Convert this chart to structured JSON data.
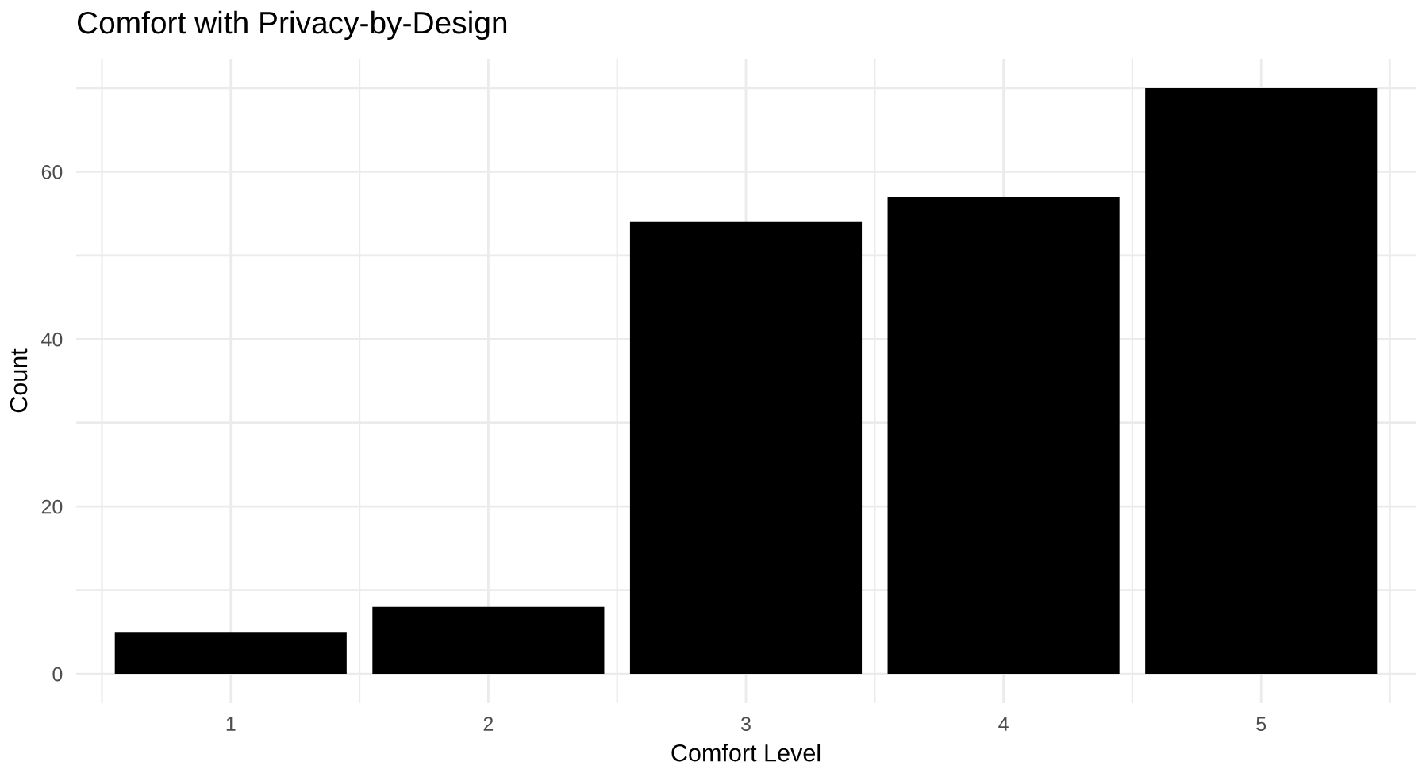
{
  "chart_data": {
    "type": "bar",
    "title": "Comfort with Privacy-by-Design",
    "xlabel": "Comfort Level",
    "ylabel": "Count",
    "categories": [
      "1",
      "2",
      "3",
      "4",
      "5"
    ],
    "values": [
      5,
      8,
      54,
      57,
      70
    ],
    "color": "#000000",
    "ylim": [
      -3.5,
      73.5
    ],
    "yticks": [
      0,
      {
        "value": 10,
        "label": null
      },
      20,
      {
        "value": 30,
        "label": null
      },
      40,
      {
        "value": 50,
        "label": null
      },
      60,
      {
        "value": 70,
        "label": null
      }
    ],
    "grid": true
  }
}
